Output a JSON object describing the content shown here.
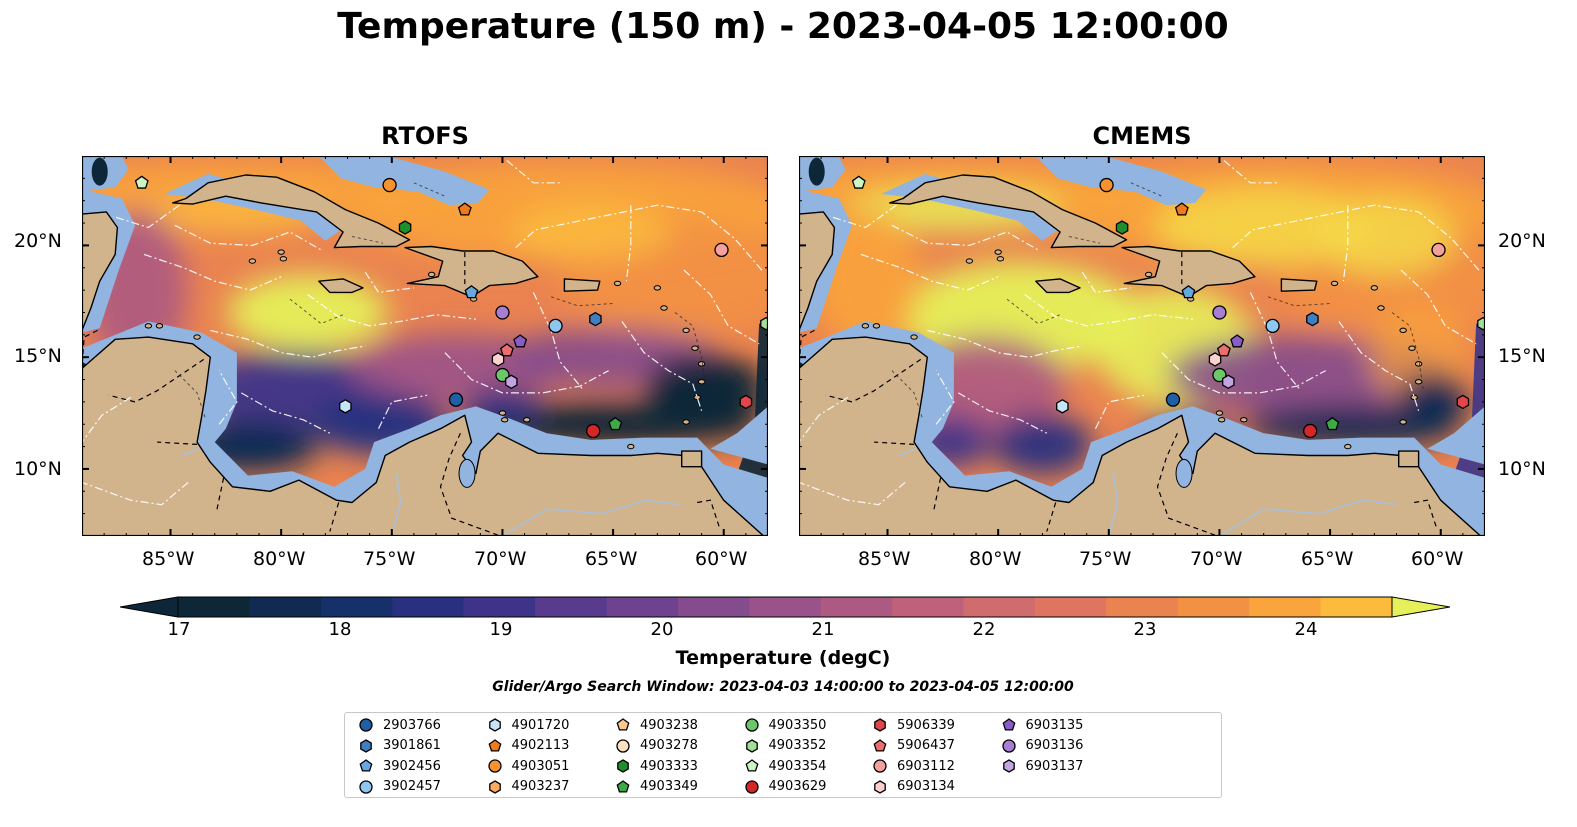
{
  "figure": {
    "title": "Temperature (150 m) - 2023-04-05 12:00:00",
    "search_window": "Glider/Argo Search Window: 2023-04-03 14:00:00 to 2023-04-05 12:00:00"
  },
  "panels": [
    {
      "title": "RTOFS"
    },
    {
      "title": "CMEMS"
    }
  ],
  "axes": {
    "lon_ticks": [
      "85°W",
      "80°W",
      "75°W",
      "70°W",
      "65°W",
      "60°W"
    ],
    "lat_ticks": [
      "20°N",
      "15°N",
      "10°N"
    ],
    "lon_range": [
      -89,
      -58
    ],
    "lat_range": [
      7,
      24
    ]
  },
  "colorbar": {
    "title": "Temperature (degC)",
    "tick_labels": [
      "17",
      "18",
      "19",
      "20",
      "21",
      "22",
      "23",
      "24"
    ],
    "range": [
      17,
      24.5
    ],
    "colors": [
      "#0d2738",
      "#102a52",
      "#16306a",
      "#28307f",
      "#3d3489",
      "#583a8e",
      "#6e428f",
      "#844b8d",
      "#9a528a",
      "#ad5a82",
      "#bf617a",
      "#d06b6e",
      "#df7560",
      "#ea8350",
      "#f39142",
      "#f9a43c",
      "#fbbc3e",
      "#f5d848",
      "#e5f05a"
    ],
    "extend": "both"
  },
  "map_colors": {
    "land": "#d2b48c",
    "shelf": "#92b4e0",
    "deep_cold": "#0d2738"
  },
  "legend": {
    "items": [
      {
        "id": "2903766",
        "shape": "circle",
        "color": "#1f5fa6"
      },
      {
        "id": "3901861",
        "shape": "hexagon",
        "color": "#3f7fc0"
      },
      {
        "id": "3902456",
        "shape": "pentagon",
        "color": "#66a8e0"
      },
      {
        "id": "3902457",
        "shape": "circle",
        "color": "#8ec7f0"
      },
      {
        "id": "4901720",
        "shape": "hexagon",
        "color": "#c6e4fa"
      },
      {
        "id": "4902113",
        "shape": "pentagon",
        "color": "#f07a18"
      },
      {
        "id": "4903051",
        "shape": "circle",
        "color": "#f6922f"
      },
      {
        "id": "4903237",
        "shape": "hexagon",
        "color": "#fbac60"
      },
      {
        "id": "4903238",
        "shape": "pentagon",
        "color": "#fcc891"
      },
      {
        "id": "4903278",
        "shape": "circle",
        "color": "#fde0c2"
      },
      {
        "id": "4903333",
        "shape": "hexagon",
        "color": "#1f8f2e"
      },
      {
        "id": "4903349",
        "shape": "pentagon",
        "color": "#3daa45"
      },
      {
        "id": "4903350",
        "shape": "circle",
        "color": "#6cc66a"
      },
      {
        "id": "4903352",
        "shape": "hexagon",
        "color": "#a2df98"
      },
      {
        "id": "4903354",
        "shape": "pentagon",
        "color": "#cdf5c4"
      },
      {
        "id": "4903629",
        "shape": "circle",
        "color": "#d62728"
      },
      {
        "id": "5906339",
        "shape": "hexagon",
        "color": "#e0464a"
      },
      {
        "id": "5906437",
        "shape": "pentagon",
        "color": "#ec6d6e"
      },
      {
        "id": "6903112",
        "shape": "circle",
        "color": "#f3a09e"
      },
      {
        "id": "6903134",
        "shape": "hexagon",
        "color": "#fbd1d0"
      },
      {
        "id": "6903135",
        "shape": "pentagon",
        "color": "#8a5cc8"
      },
      {
        "id": "6903136",
        "shape": "circle",
        "color": "#a77ed4"
      },
      {
        "id": "6903137",
        "shape": "hexagon",
        "color": "#c2a4e2"
      }
    ]
  },
  "floats": [
    {
      "id": "4903354",
      "lon": -86.3,
      "lat": 22.8
    },
    {
      "id": "4903051",
      "lon": -75.1,
      "lat": 22.7
    },
    {
      "id": "4902113",
      "lon": -71.7,
      "lat": 21.6
    },
    {
      "id": "4903333",
      "lon": -74.4,
      "lat": 20.8
    },
    {
      "id": "6903112",
      "lon": -60.1,
      "lat": 19.8
    },
    {
      "id": "3902456",
      "lon": -71.4,
      "lat": 17.9
    },
    {
      "id": "6903136",
      "lon": -70.0,
      "lat": 17.0
    },
    {
      "id": "3902457",
      "lon": -67.6,
      "lat": 16.4
    },
    {
      "id": "3901861",
      "lon": -65.8,
      "lat": 16.7
    },
    {
      "id": "4903352",
      "lon": -57.9,
      "lat": 16.5
    },
    {
      "id": "6903135",
      "lon": -69.2,
      "lat": 15.7
    },
    {
      "id": "5906437",
      "lon": -69.8,
      "lat": 15.3
    },
    {
      "id": "6903134",
      "lon": -70.2,
      "lat": 14.9
    },
    {
      "id": "4903350",
      "lon": -70.0,
      "lat": 14.2
    },
    {
      "id": "6903137",
      "lon": -69.6,
      "lat": 13.9
    },
    {
      "id": "2903766",
      "lon": -72.1,
      "lat": 13.1
    },
    {
      "id": "4901720",
      "lon": -77.1,
      "lat": 12.8
    },
    {
      "id": "5906339",
      "lon": -59.0,
      "lat": 13.0
    },
    {
      "id": "4903349",
      "lon": -64.9,
      "lat": 12.0
    },
    {
      "id": "4903629",
      "lon": -65.9,
      "lat": 11.7
    }
  ]
}
